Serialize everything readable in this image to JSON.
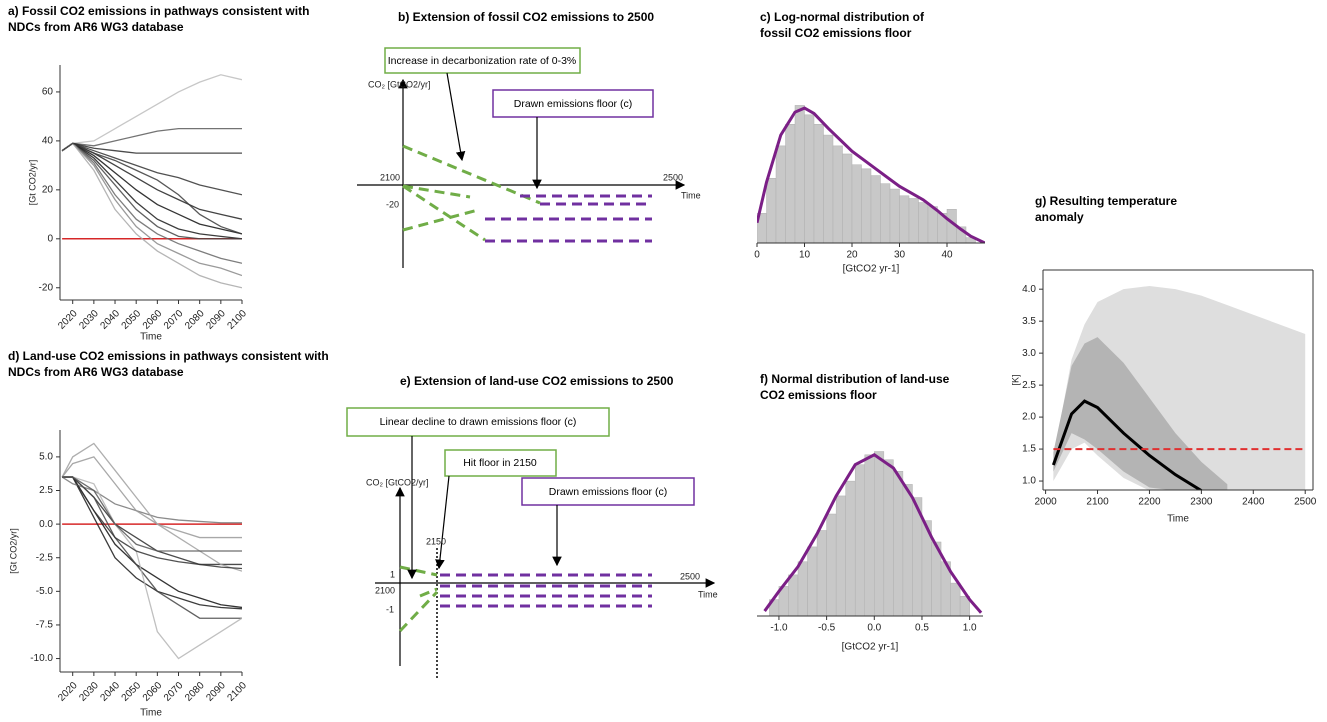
{
  "chart_data": [
    {
      "type": "line",
      "title": [
        "a) Fossil CO2 emissions in pathways consistent with",
        "NDCs from AR6 WG3 database"
      ],
      "xlabel": "Time",
      "ylabel": "[Gt CO2/yr]",
      "x": [
        2015,
        2020,
        2030,
        2040,
        2050,
        2060,
        2070,
        2080,
        2090,
        2100
      ],
      "series": [
        {
          "color": "#bdbdbd",
          "values": [
            36,
            39,
            40,
            45,
            50,
            55,
            60,
            64,
            67,
            65
          ]
        },
        {
          "color": "#5a5a5a",
          "values": [
            36,
            39,
            38,
            40,
            42,
            44,
            45,
            45,
            45,
            45
          ]
        },
        {
          "color": "#2b2b2b",
          "values": [
            36,
            39,
            37,
            36,
            35,
            35,
            35,
            35,
            35,
            35
          ]
        },
        {
          "color": "#333333",
          "values": [
            36,
            39,
            36,
            33,
            30,
            27,
            25,
            22,
            20,
            18
          ]
        },
        {
          "color": "#222222",
          "values": [
            36,
            39,
            35,
            30,
            25,
            20,
            16,
            12,
            10,
            8
          ]
        },
        {
          "color": "#111111",
          "values": [
            36,
            39,
            34,
            27,
            20,
            14,
            10,
            6,
            4,
            2
          ]
        },
        {
          "color": "#1a1a1a",
          "values": [
            36,
            39,
            33,
            24,
            15,
            8,
            4,
            2,
            1,
            0
          ]
        },
        {
          "color": "#444444",
          "values": [
            36,
            39,
            32,
            22,
            12,
            5,
            1,
            0,
            0,
            0
          ]
        },
        {
          "color": "#666666",
          "values": [
            36,
            39,
            31,
            18,
            8,
            2,
            -2,
            -5,
            -8,
            -10
          ]
        },
        {
          "color": "#888888",
          "values": [
            36,
            39,
            30,
            16,
            5,
            -2,
            -6,
            -10,
            -12,
            -15
          ]
        },
        {
          "color": "#a8a8a8",
          "values": [
            36,
            39,
            28,
            12,
            2,
            -5,
            -10,
            -15,
            -18,
            -20
          ]
        },
        {
          "color": "#3a3a3a",
          "values": [
            36,
            39,
            35,
            32,
            28,
            24,
            18,
            10,
            5,
            2
          ]
        }
      ],
      "hline": {
        "value": 0,
        "color": "#d62728"
      },
      "xlim": [
        2014,
        2100
      ],
      "xticks": [
        2020,
        2030,
        2040,
        2050,
        2060,
        2070,
        2080,
        2090,
        2100
      ],
      "ylim": [
        -25,
        71
      ],
      "yticks": [
        -20,
        0,
        20,
        40,
        60
      ]
    },
    {
      "type": "histogram",
      "title": [
        "c) Log-normal distribution of",
        "fossil CO2 emissions floor"
      ],
      "xlabel": "[GtCO2 yr-1]",
      "bins": [
        0,
        2,
        4,
        6,
        8,
        10,
        12,
        14,
        16,
        18,
        20,
        22,
        24,
        26,
        28,
        30,
        32,
        34,
        36,
        38,
        40,
        42,
        44,
        46
      ],
      "values": [
        22,
        48,
        72,
        88,
        102,
        95,
        88,
        80,
        72,
        66,
        58,
        55,
        50,
        44,
        40,
        35,
        33,
        30,
        27,
        22,
        25,
        12,
        4
      ],
      "color": "#c8c8c8",
      "kde": {
        "color": "#7b1f86",
        "x": [
          0,
          2,
          5,
          8,
          10,
          12,
          15,
          20,
          25,
          30,
          35,
          38,
          40,
          43,
          45,
          48
        ],
        "values": [
          15,
          45,
          80,
          97,
          100,
          96,
          85,
          68,
          55,
          42,
          32,
          24,
          18,
          10,
          5,
          0
        ]
      },
      "xlim": [
        0,
        48
      ],
      "xticks": [
        0,
        10,
        20,
        30,
        40
      ],
      "ylim": [
        0,
        106
      ]
    },
    {
      "type": "line",
      "title": [
        "d) Land-use CO2 emissions in pathways consistent with",
        "NDCs from AR6 WG3 database"
      ],
      "xlabel": "Time",
      "ylabel": "[Gt CO2/yr]",
      "x": [
        2015,
        2020,
        2030,
        2040,
        2050,
        2060,
        2070,
        2080,
        2090,
        2100
      ],
      "series": [
        {
          "color": "#2b2b2b",
          "values": [
            3.5,
            3.5,
            2,
            0,
            -1,
            -2,
            -2.5,
            -3,
            -3,
            -3
          ]
        },
        {
          "color": "#111111",
          "values": [
            3.5,
            3.5,
            1,
            -1.5,
            -3,
            -4,
            -5,
            -5.5,
            -6,
            -6.2
          ]
        },
        {
          "color": "#1a1a1a",
          "values": [
            3.5,
            3.5,
            0.5,
            -2.5,
            -4,
            -5,
            -5.5,
            -6,
            -6.2,
            -6.3
          ]
        },
        {
          "color": "#777777",
          "values": [
            3.5,
            3,
            2.5,
            1.5,
            1,
            0.5,
            0.3,
            0.2,
            0.1,
            0.1
          ]
        },
        {
          "color": "#999999",
          "values": [
            3.5,
            4.5,
            5,
            3,
            1,
            0,
            -0.5,
            -1,
            -1,
            -1
          ]
        },
        {
          "color": "#444444",
          "values": [
            3.5,
            3.5,
            2,
            -1,
            -3,
            -5,
            -6,
            -7,
            -7,
            -7
          ]
        },
        {
          "color": "#b5b5b5",
          "values": [
            3.5,
            3.5,
            3,
            0,
            -2,
            -8,
            -10,
            -9,
            -8,
            -7
          ]
        },
        {
          "color": "#a0a0a0",
          "values": [
            3.5,
            5,
            6,
            4,
            2,
            0,
            -1,
            -2,
            -3,
            -3.5
          ]
        },
        {
          "color": "#333333",
          "values": [
            3.5,
            3.5,
            1,
            -1,
            -2,
            -2.5,
            -2.8,
            -3,
            -3.2,
            -3.3
          ]
        },
        {
          "color": "#555555",
          "values": [
            3.5,
            3.5,
            2.5,
            0,
            -1.5,
            -2,
            -2,
            -2,
            -2,
            -2
          ]
        }
      ],
      "hline": {
        "value": 0,
        "color": "#d62728"
      },
      "xlim": [
        2014,
        2100
      ],
      "xticks": [
        2020,
        2030,
        2040,
        2050,
        2060,
        2070,
        2080,
        2090,
        2100
      ],
      "ylim": [
        -11,
        7
      ],
      "yticks": [
        {
          "value": -10,
          "label": "-10.0"
        },
        -7.5,
        {
          "value": -5,
          "label": "-5.0"
        },
        -2.5,
        {
          "value": 0,
          "label": "0.0"
        },
        2.5,
        {
          "value": 5,
          "label": "5.0"
        }
      ]
    },
    {
      "type": "histogram",
      "title": [
        "f) Normal distribution of land-use",
        "CO2 emissions floor"
      ],
      "xlabel": "[GtCO2 yr-1]",
      "bins": [
        -1.1,
        -1.0,
        -0.9,
        -0.8,
        -0.7,
        -0.6,
        -0.5,
        -0.4,
        -0.3,
        -0.2,
        -0.1,
        0,
        0.1,
        0.2,
        0.3,
        0.4,
        0.5,
        0.6,
        0.7,
        0.8,
        0.9,
        1.0
      ],
      "values": [
        10,
        18,
        25,
        33,
        42,
        52,
        62,
        73,
        82,
        92,
        98,
        100,
        95,
        88,
        80,
        72,
        58,
        45,
        33,
        20,
        12
      ],
      "color": "#c8c8c8",
      "kde": {
        "color": "#7b1f86",
        "x": [
          -1.15,
          -1.0,
          -0.8,
          -0.6,
          -0.4,
          -0.2,
          0,
          0.2,
          0.4,
          0.6,
          0.8,
          1.0,
          1.12
        ],
        "values": [
          3,
          15,
          30,
          50,
          73,
          92,
          98,
          90,
          72,
          48,
          27,
          10,
          2
        ]
      },
      "xlim": [
        -1.23,
        1.14
      ],
      "xticks": [
        {
          "value": -1,
          "label": "-1.0"
        },
        -0.5,
        {
          "value": 0,
          "label": "0.0"
        },
        0.5,
        {
          "value": 1,
          "label": "1.0"
        }
      ],
      "ylim": [
        0,
        107
      ]
    },
    {
      "type": "line",
      "title": [
        "g) Resulting temperature",
        "anomaly"
      ],
      "xlabel": "Time",
      "ylabel": "[K]",
      "x": [
        2015,
        2050,
        2075,
        2100,
        2150,
        2200,
        2250,
        2300,
        2350,
        2400,
        2450,
        2500
      ],
      "bands": [
        {
          "color": "#dedede",
          "upper": [
            1.35,
            2.9,
            3.45,
            3.8,
            4.0,
            4.05,
            4.0,
            3.9,
            3.75,
            3.6,
            3.45,
            3.3
          ],
          "lower": [
            1.0,
            1.5,
            1.6,
            1.4,
            1.05,
            0.85,
            0.85,
            0.85,
            0.85,
            0.85,
            0.85,
            0.85
          ]
        },
        {
          "color": "#b4b4b4",
          "upper": [
            1.45,
            2.8,
            3.15,
            3.25,
            2.85,
            2.3,
            1.75,
            1.3,
            0.95,
            null,
            null,
            null
          ],
          "lower": [
            1.15,
            1.75,
            1.65,
            1.5,
            1.15,
            0.9,
            0.85,
            0.85,
            0.85,
            null,
            null,
            null
          ]
        }
      ],
      "series": [
        {
          "color": "#000000",
          "values": [
            1.25,
            2.05,
            2.25,
            2.15,
            1.75,
            1.4,
            1.1,
            0.85,
            null,
            null,
            null,
            null
          ]
        }
      ],
      "hline": {
        "value": 1.5,
        "color": "#e03030",
        "dash": true
      },
      "xlim": [
        1995,
        2515
      ],
      "xticks": [
        2000,
        2100,
        2200,
        2300,
        2400,
        2500
      ],
      "ylim": [
        0.86,
        4.3
      ],
      "yticks": [
        {
          "value": 1,
          "label": "1.0"
        },
        1.5,
        {
          "value": 2,
          "label": "2.0"
        },
        2.5,
        {
          "value": 3,
          "label": "3.0"
        },
        3.5,
        {
          "value": 4,
          "label": "4.0"
        }
      ]
    }
  ],
  "diagrams": [
    {
      "title": "b) Extension of fossil CO2 emissions to 2500",
      "boxes": [
        "Increase in decarbonization rate of 0-3%",
        "Drawn emissions floor (c)"
      ],
      "ylabel": "CO₂ [GtCO2/yr]",
      "labels": [
        "2100",
        "2500",
        "Time",
        "-20"
      ]
    },
    {
      "title": "e) Extension of land-use CO2 emissions to 2500",
      "boxes": [
        "Linear decline to drawn emissions floor (c)",
        "Hit floor in 2150",
        "Drawn emissions floor (c)"
      ],
      "ylabel": "CO₂ [GtCO2/yr]",
      "labels": [
        "2150",
        "1",
        "2100",
        "-1",
        "2500",
        "Time"
      ]
    }
  ]
}
